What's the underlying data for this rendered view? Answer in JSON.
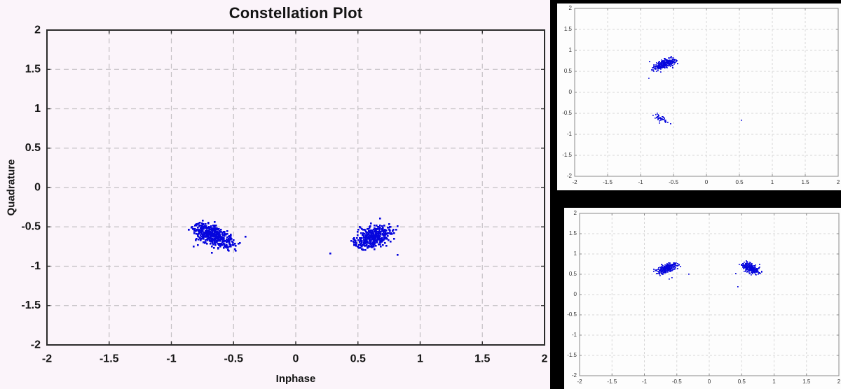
{
  "window": {
    "page_background": "#000000",
    "figure_background": "#fbf4fa",
    "panel_background": "#fdfdfd",
    "point_color": "#0505dd"
  },
  "chart_data": [
    {
      "id": "main",
      "type": "scatter",
      "title": "Constellation Plot",
      "xlabel": "Inphase",
      "ylabel": "Quadrature",
      "xlim": [
        -2,
        2
      ],
      "ylim": [
        -2,
        2
      ],
      "xticks": [
        -2,
        -1.5,
        -1,
        -0.5,
        0,
        0.5,
        1,
        1.5,
        2
      ],
      "xtick_labels": [
        "-2",
        "-1.5",
        "-1",
        "-0.5",
        "0",
        "0.5",
        "1",
        "1.5",
        "2"
      ],
      "yticks": [
        -2,
        -1.5,
        -1,
        -0.5,
        0,
        0.5,
        1,
        1.5,
        2
      ],
      "ytick_labels": [
        "-2",
        "-1.5",
        "-1",
        "-0.5",
        "0",
        "0.5",
        "1",
        "1.5",
        "2"
      ],
      "grid": true,
      "legend": null,
      "background": "#fbf4fa",
      "point_color": "#0505dd",
      "seed": 7,
      "clusters": [
        {
          "from": [
            -0.79,
            -0.48
          ],
          "to": [
            -0.47,
            -0.8
          ],
          "bias": 0.4,
          "spread": 0.05,
          "count": 430
        },
        {
          "from": [
            0.51,
            -0.75
          ],
          "to": [
            0.76,
            -0.47
          ],
          "bias": 0.45,
          "spread": 0.052,
          "count": 380
        }
      ],
      "stray_points": [
        [
          0.28,
          -0.84
        ]
      ]
    },
    {
      "id": "top_right",
      "type": "scatter",
      "title": "",
      "xlabel": "",
      "ylabel": "",
      "xlim": [
        -2,
        2
      ],
      "ylim": [
        -2,
        2
      ],
      "xticks": [
        -2,
        -1.5,
        -1,
        -0.5,
        0,
        0.5,
        1,
        1.5,
        2
      ],
      "xtick_labels": [
        "-2",
        "-1.5",
        "-1",
        "-0.5",
        "0",
        "0.5",
        "1",
        "1.5",
        "2"
      ],
      "yticks": [
        -2,
        -1.5,
        -1,
        -0.5,
        0,
        0.5,
        1,
        1.5,
        2
      ],
      "ytick_labels": [
        "-2",
        "-1.5",
        "-1",
        "-0.5",
        "0",
        "0.5",
        "1",
        "1.5",
        "2"
      ],
      "grid": true,
      "legend": null,
      "background": "#fdfdfd",
      "point_color": "#0505dd",
      "seed": 11,
      "clusters": [
        {
          "from": [
            -0.82,
            0.54
          ],
          "to": [
            -0.49,
            0.78
          ],
          "bias": 0.58,
          "spread": 0.038,
          "count": 300
        },
        {
          "from": [
            -0.82,
            -0.5
          ],
          "to": [
            -0.56,
            -0.74
          ],
          "bias": 0.5,
          "spread": 0.035,
          "count": 42
        }
      ],
      "stray_points": [
        [
          -0.87,
          0.34
        ],
        [
          0.53,
          -0.67
        ]
      ]
    },
    {
      "id": "bottom_right",
      "type": "scatter",
      "title": "",
      "xlabel": "",
      "ylabel": "",
      "xlim": [
        -2,
        2
      ],
      "ylim": [
        -2,
        2
      ],
      "xticks": [
        -2,
        -1.5,
        -1,
        -0.5,
        0,
        0.5,
        1,
        1.5,
        2
      ],
      "xtick_labels": [
        "-2",
        "-1.5",
        "-1",
        "-0.5",
        "0",
        "0.5",
        "1",
        "1.5",
        "2"
      ],
      "yticks": [
        -2,
        -1.5,
        -1,
        -0.5,
        0,
        0.5,
        1,
        1.5,
        2
      ],
      "ytick_labels": [
        "-2",
        "-1.5",
        "-1",
        "-0.5",
        "0",
        "0.5",
        "1",
        "1.5",
        "2"
      ],
      "grid": true,
      "legend": null,
      "background": "#fdfdfd",
      "point_color": "#0505dd",
      "seed": 13,
      "clusters": [
        {
          "from": [
            -0.8,
            0.53
          ],
          "to": [
            -0.51,
            0.76
          ],
          "bias": 0.5,
          "spread": 0.04,
          "count": 300
        },
        {
          "from": [
            0.52,
            0.75
          ],
          "to": [
            0.78,
            0.52
          ],
          "bias": 0.45,
          "spread": 0.04,
          "count": 300
        }
      ],
      "stray_points": [
        [
          -0.31,
          0.51
        ],
        [
          0.44,
          0.19
        ],
        [
          0.46,
          0.74
        ]
      ]
    }
  ]
}
